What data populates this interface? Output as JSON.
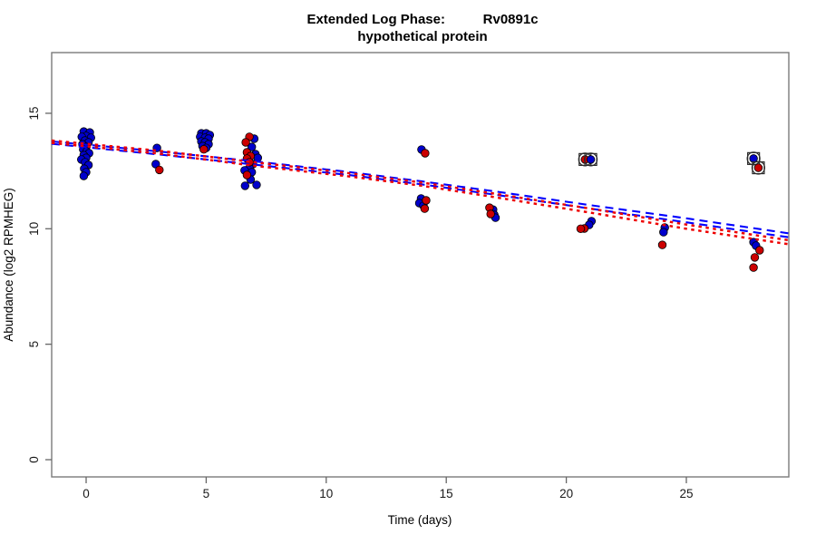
{
  "title": {
    "line1": "Extended Log Phase:          Rv0891c",
    "line2": "hypothetical protein"
  },
  "axes": {
    "x": {
      "label": "Time  (days)"
    },
    "y": {
      "label": "Abundance  (log2 RPMHEG)"
    }
  },
  "chart_data": {
    "type": "scatter",
    "title": "Extended Log Phase: Rv0891c — hypothetical protein",
    "xlabel": "Time (days)",
    "ylabel": "Abundance (log2 RPMHEG)",
    "x_ticks": [
      0,
      5,
      10,
      15,
      20,
      25
    ],
    "y_ticks": [
      0,
      5,
      10,
      15
    ],
    "xlim": [
      -1.44,
      29.27
    ],
    "ylim": [
      -0.75,
      17.63
    ],
    "grid": false,
    "legend": "none",
    "series": [
      {
        "name": "blue",
        "color": "#0000CC",
        "points": [
          [
            -0.1,
            14.21
          ],
          [
            0.15,
            14.17
          ],
          [
            0.0,
            14.02
          ],
          [
            -0.18,
            13.98
          ],
          [
            0.2,
            13.94
          ],
          [
            -0.05,
            13.82
          ],
          [
            0.1,
            13.74
          ],
          [
            -0.15,
            13.66
          ],
          [
            0.0,
            13.54
          ],
          [
            -0.12,
            13.43
          ],
          [
            0.02,
            13.35
          ],
          [
            0.12,
            13.27
          ],
          [
            -0.1,
            13.19
          ],
          [
            0.0,
            13.07
          ],
          [
            -0.2,
            13.0
          ],
          [
            -0.04,
            12.88
          ],
          [
            0.1,
            12.76
          ],
          [
            -0.08,
            12.6
          ],
          [
            0.0,
            12.45
          ],
          [
            -0.1,
            12.29
          ],
          [
            2.95,
            13.5
          ],
          [
            2.9,
            12.8
          ],
          [
            4.8,
            14.13
          ],
          [
            5.0,
            14.13
          ],
          [
            5.15,
            14.06
          ],
          [
            4.75,
            13.98
          ],
          [
            4.95,
            13.94
          ],
          [
            5.1,
            13.9
          ],
          [
            4.8,
            13.78
          ],
          [
            4.95,
            13.74
          ],
          [
            5.1,
            13.66
          ],
          [
            4.85,
            13.58
          ],
          [
            5.0,
            13.5
          ],
          [
            7.0,
            13.9
          ],
          [
            6.9,
            13.54
          ],
          [
            7.05,
            13.23
          ],
          [
            7.15,
            13.07
          ],
          [
            6.95,
            12.8
          ],
          [
            6.8,
            12.64
          ],
          [
            6.6,
            12.53
          ],
          [
            6.9,
            12.45
          ],
          [
            6.85,
            12.13
          ],
          [
            7.1,
            11.9
          ],
          [
            6.62,
            11.86
          ],
          [
            13.97,
            13.43
          ],
          [
            13.95,
            11.31
          ],
          [
            13.88,
            11.11
          ],
          [
            14.05,
            11.0
          ],
          [
            16.95,
            10.83
          ],
          [
            17.0,
            10.6
          ],
          [
            17.05,
            10.48
          ],
          [
            21.05,
            10.33
          ],
          [
            20.95,
            10.17
          ],
          [
            24.1,
            10.05
          ],
          [
            24.05,
            9.85
          ],
          [
            27.8,
            9.42
          ],
          [
            27.9,
            9.27
          ]
        ]
      },
      {
        "name": "red",
        "color": "#CC0000",
        "points": [
          [
            3.05,
            12.55
          ],
          [
            4.9,
            13.44
          ],
          [
            6.8,
            13.98
          ],
          [
            6.65,
            13.74
          ],
          [
            6.7,
            13.31
          ],
          [
            6.85,
            13.15
          ],
          [
            6.7,
            13.04
          ],
          [
            6.8,
            12.88
          ],
          [
            6.7,
            12.33
          ],
          [
            14.12,
            13.27
          ],
          [
            14.16,
            11.23
          ],
          [
            14.1,
            10.87
          ],
          [
            16.8,
            10.91
          ],
          [
            16.85,
            10.64
          ],
          [
            20.75,
            10.01
          ],
          [
            20.6,
            10.0
          ],
          [
            24.0,
            9.3
          ],
          [
            28.05,
            9.07
          ],
          [
            27.85,
            8.76
          ],
          [
            27.8,
            8.32
          ]
        ]
      }
    ],
    "flagged_points": [
      {
        "x": 20.78,
        "y": 13.0,
        "series": "red"
      },
      {
        "x": 21.02,
        "y": 13.0,
        "series": "blue"
      },
      {
        "x": 27.8,
        "y": 13.04,
        "series": "blue"
      },
      {
        "x": 28.0,
        "y": 12.64,
        "series": "red"
      }
    ],
    "trend_lines": [
      {
        "name": "blue-upper",
        "color": "#0000FF",
        "dash": "9,6",
        "width": 2.1,
        "points": [
          [
            -1.44,
            13.78
          ],
          [
            3,
            13.35
          ],
          [
            7,
            12.92
          ],
          [
            11,
            12.45
          ],
          [
            14,
            12.05
          ],
          [
            17,
            11.62
          ],
          [
            21,
            11.02
          ],
          [
            25,
            10.45
          ],
          [
            29.27,
            9.8
          ]
        ]
      },
      {
        "name": "blue-lower",
        "color": "#0000FF",
        "dash": "9,6",
        "width": 2.1,
        "points": [
          [
            -1.44,
            13.68
          ],
          [
            3,
            13.22
          ],
          [
            7,
            12.78
          ],
          [
            11,
            12.32
          ],
          [
            14,
            11.92
          ],
          [
            17,
            11.48
          ],
          [
            21,
            10.87
          ],
          [
            25,
            10.28
          ],
          [
            29.27,
            9.63
          ]
        ]
      },
      {
        "name": "red-upper",
        "color": "#EE0000",
        "dash": "3.5,4.5",
        "width": 2.5,
        "points": [
          [
            -1.44,
            13.82
          ],
          [
            3,
            13.38
          ],
          [
            7,
            12.88
          ],
          [
            11,
            12.4
          ],
          [
            14,
            12.0
          ],
          [
            17,
            11.52
          ],
          [
            21,
            10.87
          ],
          [
            25,
            10.18
          ],
          [
            29.27,
            9.5
          ]
        ]
      },
      {
        "name": "red-lower",
        "color": "#EE0000",
        "dash": "3.5,4.5",
        "width": 2.5,
        "points": [
          [
            -1.44,
            13.72
          ],
          [
            3,
            13.26
          ],
          [
            7,
            12.73
          ],
          [
            11,
            12.26
          ],
          [
            14,
            11.86
          ],
          [
            17,
            11.37
          ],
          [
            21,
            10.7
          ],
          [
            25,
            10.0
          ],
          [
            29.27,
            9.33
          ]
        ]
      }
    ]
  }
}
